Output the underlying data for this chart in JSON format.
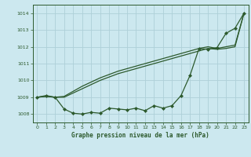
{
  "title": "Graphe pression niveau de la mer (hPa)",
  "bg_color": "#cce8ef",
  "grid_color": "#aed0d8",
  "line_color": "#2d5a2d",
  "xlim": [
    -0.5,
    23.5
  ],
  "ylim": [
    1007.5,
    1014.5
  ],
  "yticks": [
    1008,
    1009,
    1010,
    1011,
    1012,
    1013,
    1014
  ],
  "xticks": [
    0,
    1,
    2,
    3,
    4,
    5,
    6,
    7,
    8,
    9,
    10,
    11,
    12,
    13,
    14,
    15,
    16,
    17,
    18,
    19,
    20,
    21,
    22,
    23
  ],
  "series1": [
    1009.0,
    1009.1,
    1009.0,
    1008.3,
    1008.05,
    1008.0,
    1008.1,
    1008.05,
    1008.35,
    1008.3,
    1008.25,
    1008.35,
    1008.2,
    1008.5,
    1008.35,
    1008.5,
    1009.1,
    1010.3,
    1011.9,
    1011.85,
    1011.95,
    1012.8,
    1013.1,
    1014.0
  ],
  "series2": [
    1009.0,
    1009.05,
    1009.0,
    1009.0,
    1009.25,
    1009.5,
    1009.75,
    1010.0,
    1010.2,
    1010.4,
    1010.55,
    1010.7,
    1010.85,
    1011.0,
    1011.15,
    1011.3,
    1011.45,
    1011.6,
    1011.75,
    1011.9,
    1011.85,
    1011.9,
    1012.0,
    1014.0
  ],
  "series3": [
    1009.0,
    1009.05,
    1009.0,
    1009.05,
    1009.35,
    1009.65,
    1009.9,
    1010.15,
    1010.35,
    1010.55,
    1010.7,
    1010.85,
    1011.0,
    1011.15,
    1011.3,
    1011.45,
    1011.6,
    1011.75,
    1011.9,
    1012.0,
    1011.9,
    1012.0,
    1012.1,
    1014.0
  ]
}
